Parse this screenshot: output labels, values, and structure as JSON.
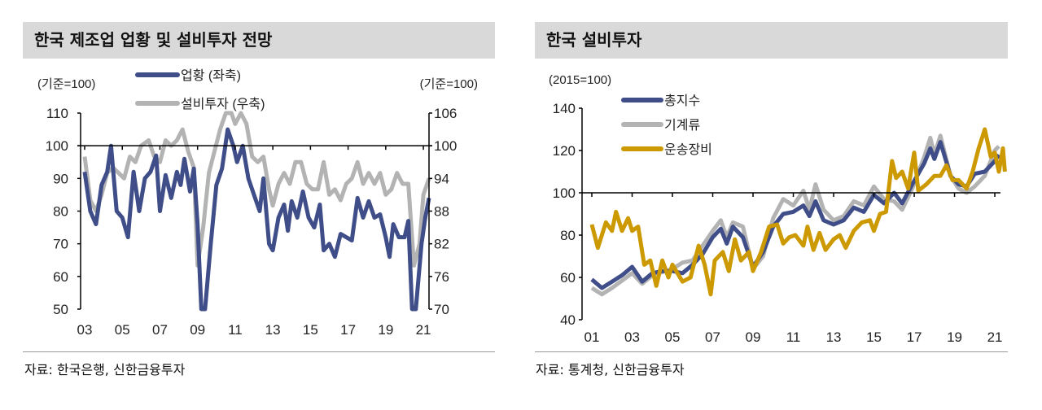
{
  "left": {
    "title": "한국 제조업 업황 및 설비투자 전망",
    "source": "자료: 한국은행, 신한금융투자"
  },
  "right": {
    "title": "한국 설비투자",
    "source": "자료: 통계청, 신한금융투자"
  },
  "colors": {
    "navy": "#3f4e88",
    "grey": "#b3b3b3",
    "gold": "#cc9900"
  },
  "chart_data": [
    {
      "type": "line",
      "title": "한국 제조업 업황 및 설비투자 전망",
      "ylabel_left": "(기준=100)",
      "ylabel_right": "(기준=100)",
      "xlim": [
        2003,
        2021.3
      ],
      "x_ticks": [
        "03",
        "05",
        "07",
        "09",
        "11",
        "13",
        "15",
        "17",
        "19",
        "21"
      ],
      "ylim_left": [
        50,
        110
      ],
      "y_ticks_left": [
        "110",
        "100",
        "90",
        "80",
        "70",
        "60",
        "50"
      ],
      "ylim_right": [
        70,
        106
      ],
      "y_ticks_right": [
        "106",
        "100",
        "94",
        "88",
        "82",
        "76",
        "70"
      ],
      "series": [
        {
          "name": "업황 (좌축)",
          "axis": "left",
          "color": "#3f4e88",
          "x": [
            2003,
            2003.3,
            2003.6,
            2003.9,
            2004.2,
            2004.4,
            2004.7,
            2005,
            2005.3,
            2005.6,
            2005.9,
            2006.2,
            2006.5,
            2006.8,
            2007,
            2007.3,
            2007.6,
            2007.9,
            2008.1,
            2008.3,
            2008.6,
            2008.8,
            2009,
            2009.2,
            2009.4,
            2009.7,
            2010,
            2010.3,
            2010.6,
            2010.9,
            2011.1,
            2011.4,
            2011.7,
            2012,
            2012.3,
            2012.5,
            2012.8,
            2013,
            2013.3,
            2013.6,
            2013.8,
            2014,
            2014.3,
            2014.6,
            2014.9,
            2015.2,
            2015.5,
            2015.7,
            2016,
            2016.3,
            2016.6,
            2016.9,
            2017.2,
            2017.5,
            2017.8,
            2018.1,
            2018.4,
            2018.7,
            2019,
            2019.2,
            2019.4,
            2019.7,
            2020,
            2020.2,
            2020.4,
            2020.6,
            2020.9,
            2021.1,
            2021.3
          ],
          "y": [
            92,
            80,
            76,
            88,
            92,
            100,
            80,
            78,
            72,
            92,
            80,
            90,
            92,
            97,
            80,
            91,
            84,
            92,
            88,
            96,
            86,
            93,
            76,
            50,
            50,
            70,
            88,
            93,
            105,
            100,
            95,
            100,
            90,
            85,
            80,
            90,
            70,
            68,
            78,
            82,
            74,
            83,
            78,
            86,
            78,
            75,
            82,
            68,
            70,
            66,
            73,
            72,
            71,
            84,
            78,
            83,
            78,
            79,
            72,
            66,
            76,
            72,
            72,
            77,
            50,
            50,
            70,
            78,
            84
          ]
        },
        {
          "name": "설비투자 (우축)",
          "axis": "right",
          "color": "#b3b3b3",
          "x": [
            2003,
            2003.3,
            2003.6,
            2003.9,
            2004.2,
            2004.5,
            2004.8,
            2005.1,
            2005.4,
            2005.7,
            2006,
            2006.4,
            2006.7,
            2007,
            2007.3,
            2007.6,
            2007.9,
            2008.2,
            2008.5,
            2008.8,
            2009,
            2009.3,
            2009.6,
            2009.9,
            2010.2,
            2010.5,
            2010.8,
            2011,
            2011.3,
            2011.6,
            2011.9,
            2012.2,
            2012.5,
            2012.8,
            2013,
            2013.3,
            2013.6,
            2013.9,
            2014.2,
            2014.5,
            2014.8,
            2015.1,
            2015.4,
            2015.7,
            2016,
            2016.3,
            2016.6,
            2016.9,
            2017.2,
            2017.5,
            2017.8,
            2018.1,
            2018.4,
            2018.7,
            2019,
            2019.3,
            2019.6,
            2019.9,
            2020.2,
            2020.5,
            2020.8,
            2021,
            2021.3
          ],
          "y": [
            98,
            90,
            88,
            91,
            95,
            96,
            95,
            94,
            98,
            97,
            100,
            101,
            98,
            97,
            101,
            100,
            101,
            103,
            99,
            96,
            78,
            85,
            95,
            99,
            103,
            106,
            106,
            104,
            106,
            104,
            98,
            97,
            98,
            92,
            89,
            93,
            95,
            93,
            97,
            97,
            93,
            92,
            92,
            97,
            91,
            92,
            90,
            93,
            94,
            97,
            93,
            95,
            93,
            95,
            91,
            92,
            95,
            93,
            93,
            78,
            82,
            91,
            94
          ]
        }
      ]
    },
    {
      "type": "line",
      "title": "한국 설비투자",
      "ylabel": "(2015=100)",
      "xlim": [
        2001,
        2021.3
      ],
      "x_ticks": [
        "01",
        "03",
        "05",
        "07",
        "09",
        "11",
        "13",
        "15",
        "17",
        "19",
        "21"
      ],
      "ylim": [
        40,
        140
      ],
      "y_ticks": [
        "140",
        "120",
        "100",
        "80",
        "60",
        "40"
      ],
      "series": [
        {
          "name": "총지수",
          "color": "#3f4e88",
          "x": [
            2001,
            2001.5,
            2002,
            2002.5,
            2003,
            2003.5,
            2004,
            2004.5,
            2005,
            2005.5,
            2006,
            2006.5,
            2007,
            2007.4,
            2007.7,
            2008,
            2008.5,
            2009,
            2009.5,
            2010,
            2010.5,
            2011,
            2011.5,
            2011.8,
            2012.1,
            2012.5,
            2013,
            2013.5,
            2014,
            2014.5,
            2015,
            2015.5,
            2016,
            2016.4,
            2016.9,
            2017.5,
            2017.8,
            2018,
            2018.3,
            2018.8,
            2019.2,
            2019.6,
            2020,
            2020.5,
            2021,
            2021.2
          ],
          "y": [
            59,
            55,
            58,
            61,
            65,
            58,
            62,
            63,
            63,
            62,
            66,
            71,
            79,
            83,
            76,
            84,
            79,
            65,
            72,
            84,
            90,
            91,
            94,
            89,
            96,
            87,
            85,
            87,
            93,
            91,
            99,
            95,
            100,
            95,
            104,
            114,
            121,
            116,
            124,
            108,
            104,
            103,
            109,
            110,
            115,
            118
          ]
        },
        {
          "name": "기계류",
          "color": "#b3b3b3",
          "x": [
            2001,
            2001.5,
            2002,
            2003,
            2003.5,
            2004,
            2005,
            2005.5,
            2006,
            2006.5,
            2007,
            2007.4,
            2007.7,
            2008,
            2008.5,
            2009,
            2009.5,
            2010,
            2010.5,
            2011,
            2011.5,
            2011.8,
            2012.1,
            2012.5,
            2013,
            2013.5,
            2014,
            2014.5,
            2015,
            2015.5,
            2016,
            2016.4,
            2016.9,
            2017.5,
            2017.8,
            2018,
            2018.3,
            2018.8,
            2019.2,
            2019.6,
            2020,
            2020.5,
            2021,
            2021.2
          ],
          "y": [
            55,
            52,
            55,
            62,
            57,
            61,
            64,
            67,
            68,
            75,
            82,
            87,
            79,
            86,
            84,
            64,
            70,
            88,
            97,
            94,
            101,
            92,
            104,
            92,
            87,
            89,
            96,
            94,
            103,
            97,
            96,
            92,
            102,
            117,
            126,
            118,
            127,
            108,
            102,
            100,
            103,
            108,
            120,
            122
          ]
        },
        {
          "name": "운송장비",
          "color": "#cc9900",
          "x": [
            2001,
            2001.3,
            2001.7,
            2002,
            2002.2,
            2002.5,
            2002.8,
            2003,
            2003.3,
            2003.6,
            2003.9,
            2004.2,
            2004.5,
            2004.8,
            2005,
            2005.5,
            2005.9,
            2006.3,
            2006.6,
            2006.9,
            2007.1,
            2007.5,
            2007.8,
            2008.1,
            2008.4,
            2008.8,
            2009,
            2009.4,
            2009.8,
            2010.2,
            2010.5,
            2010.8,
            2011.1,
            2011.5,
            2011.7,
            2012,
            2012.3,
            2012.6,
            2013,
            2013.3,
            2013.6,
            2014,
            2014.4,
            2014.8,
            2015,
            2015.3,
            2015.6,
            2015.9,
            2016.1,
            2016.4,
            2016.7,
            2017,
            2017.2,
            2017.6,
            2018,
            2018.3,
            2018.6,
            2018.9,
            2019.2,
            2019.6,
            2019.9,
            2020.2,
            2020.5,
            2020.8,
            2021,
            2021.2,
            2021.4,
            2021.5
          ],
          "y": [
            85,
            74,
            86,
            82,
            91,
            82,
            88,
            82,
            84,
            66,
            68,
            56,
            68,
            60,
            66,
            58,
            60,
            75,
            66,
            52,
            68,
            72,
            63,
            78,
            68,
            72,
            63,
            72,
            84,
            85,
            76,
            79,
            80,
            75,
            84,
            73,
            81,
            73,
            78,
            80,
            74,
            82,
            86,
            87,
            82,
            90,
            91,
            115,
            107,
            110,
            102,
            119,
            101,
            104,
            108,
            108,
            113,
            106,
            106,
            102,
            110,
            121,
            130,
            117,
            119,
            110,
            121,
            110
          ]
        }
      ]
    }
  ]
}
